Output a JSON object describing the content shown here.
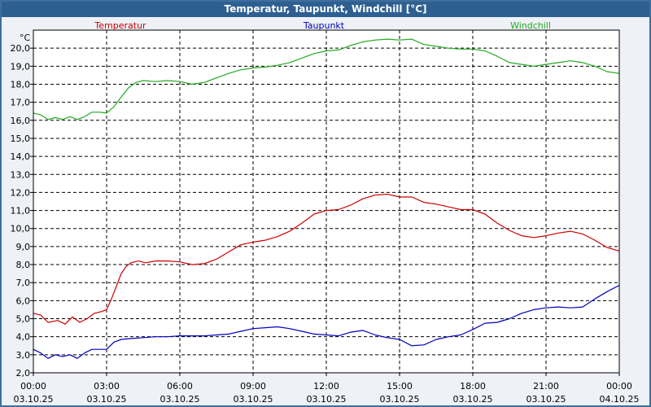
{
  "window": {
    "title": "Temperatur, Taupunkt, Windchill [°C]"
  },
  "colors": {
    "temperatur": "#cc0000",
    "taupunkt": "#0000bb",
    "windchill": "#22aa22",
    "titlebar": "#2e5f91",
    "frame": "#3f6e9e"
  },
  "chart_data": {
    "type": "line",
    "title": "Temperatur, Taupunkt, Windchill [°C]",
    "ylabel": "°C",
    "xlabel": "",
    "ylim": [
      2.0,
      21.0
    ],
    "xlim": [
      0,
      24
    ],
    "y_ticks": [
      "2,0",
      "3,0",
      "4,0",
      "5,0",
      "6,0",
      "7,0",
      "8,0",
      "9,0",
      "10,0",
      "11,0",
      "12,0",
      "13,0",
      "14,0",
      "15,0",
      "16,0",
      "17,0",
      "18,0",
      "19,0",
      "20,0"
    ],
    "x_ticks": [
      {
        "time": "00:00",
        "date": "03.10.25"
      },
      {
        "time": "03:00",
        "date": "03.10.25"
      },
      {
        "time": "06:00",
        "date": "03.10.25"
      },
      {
        "time": "09:00",
        "date": "03.10.25"
      },
      {
        "time": "12:00",
        "date": "03.10.25"
      },
      {
        "time": "15:00",
        "date": "03.10.25"
      },
      {
        "time": "18:00",
        "date": "03.10.25"
      },
      {
        "time": "21:00",
        "date": "03.10.25"
      },
      {
        "time": "00:00",
        "date": "04.10.25"
      }
    ],
    "grid": true,
    "legend_position": "top",
    "series": [
      {
        "name": "Temperatur",
        "points": [
          [
            0.0,
            5.3
          ],
          [
            0.3,
            5.2
          ],
          [
            0.6,
            4.8
          ],
          [
            1.0,
            4.9
          ],
          [
            1.3,
            4.7
          ],
          [
            1.6,
            5.1
          ],
          [
            1.9,
            4.8
          ],
          [
            2.2,
            5.0
          ],
          [
            2.5,
            5.3
          ],
          [
            2.8,
            5.4
          ],
          [
            3.0,
            5.5
          ],
          [
            3.2,
            6.1
          ],
          [
            3.4,
            6.8
          ],
          [
            3.6,
            7.5
          ],
          [
            3.8,
            7.9
          ],
          [
            4.0,
            8.1
          ],
          [
            4.3,
            8.2
          ],
          [
            4.6,
            8.1
          ],
          [
            5.0,
            8.2
          ],
          [
            5.5,
            8.2
          ],
          [
            6.0,
            8.15
          ],
          [
            6.5,
            8.0
          ],
          [
            7.0,
            8.05
          ],
          [
            7.5,
            8.3
          ],
          [
            8.0,
            8.7
          ],
          [
            8.5,
            9.1
          ],
          [
            9.0,
            9.25
          ],
          [
            9.5,
            9.35
          ],
          [
            10.0,
            9.55
          ],
          [
            10.5,
            9.85
          ],
          [
            11.0,
            10.3
          ],
          [
            11.5,
            10.8
          ],
          [
            12.0,
            11.0
          ],
          [
            12.5,
            11.05
          ],
          [
            13.0,
            11.3
          ],
          [
            13.5,
            11.65
          ],
          [
            14.0,
            11.85
          ],
          [
            14.5,
            11.9
          ],
          [
            15.0,
            11.75
          ],
          [
            15.5,
            11.75
          ],
          [
            16.0,
            11.45
          ],
          [
            16.5,
            11.35
          ],
          [
            17.0,
            11.2
          ],
          [
            17.5,
            11.05
          ],
          [
            18.0,
            11.05
          ],
          [
            18.5,
            10.8
          ],
          [
            19.0,
            10.3
          ],
          [
            19.5,
            9.9
          ],
          [
            20.0,
            9.6
          ],
          [
            20.5,
            9.5
          ],
          [
            21.0,
            9.6
          ],
          [
            21.5,
            9.75
          ],
          [
            22.0,
            9.85
          ],
          [
            22.5,
            9.7
          ],
          [
            23.0,
            9.35
          ],
          [
            23.5,
            8.95
          ],
          [
            24.0,
            8.75
          ]
        ]
      },
      {
        "name": "Taupunkt",
        "points": [
          [
            0.0,
            3.3
          ],
          [
            0.3,
            3.1
          ],
          [
            0.6,
            2.8
          ],
          [
            0.9,
            3.0
          ],
          [
            1.2,
            2.9
          ],
          [
            1.5,
            3.0
          ],
          [
            1.8,
            2.8
          ],
          [
            2.1,
            3.1
          ],
          [
            2.4,
            3.3
          ],
          [
            2.7,
            3.3
          ],
          [
            3.0,
            3.3
          ],
          [
            3.3,
            3.7
          ],
          [
            3.6,
            3.85
          ],
          [
            4.0,
            3.9
          ],
          [
            4.5,
            3.95
          ],
          [
            5.0,
            4.0
          ],
          [
            5.5,
            4.0
          ],
          [
            6.0,
            4.05
          ],
          [
            6.5,
            4.05
          ],
          [
            7.0,
            4.05
          ],
          [
            7.5,
            4.1
          ],
          [
            8.0,
            4.15
          ],
          [
            8.5,
            4.3
          ],
          [
            9.0,
            4.45
          ],
          [
            9.5,
            4.5
          ],
          [
            10.0,
            4.55
          ],
          [
            10.5,
            4.45
          ],
          [
            11.0,
            4.3
          ],
          [
            11.5,
            4.15
          ],
          [
            12.0,
            4.1
          ],
          [
            12.5,
            4.05
          ],
          [
            13.0,
            4.25
          ],
          [
            13.5,
            4.35
          ],
          [
            14.0,
            4.1
          ],
          [
            14.5,
            3.95
          ],
          [
            15.0,
            3.85
          ],
          [
            15.5,
            3.5
          ],
          [
            16.0,
            3.55
          ],
          [
            16.5,
            3.85
          ],
          [
            17.0,
            4.0
          ],
          [
            17.5,
            4.1
          ],
          [
            18.0,
            4.4
          ],
          [
            18.5,
            4.75
          ],
          [
            19.0,
            4.8
          ],
          [
            19.5,
            5.0
          ],
          [
            20.0,
            5.3
          ],
          [
            20.5,
            5.5
          ],
          [
            21.0,
            5.6
          ],
          [
            21.5,
            5.65
          ],
          [
            22.0,
            5.6
          ],
          [
            22.5,
            5.65
          ],
          [
            23.0,
            6.1
          ],
          [
            23.5,
            6.5
          ],
          [
            24.0,
            6.85
          ]
        ]
      },
      {
        "name": "Windchill",
        "points": [
          [
            0.0,
            16.4
          ],
          [
            0.3,
            16.3
          ],
          [
            0.6,
            16.05
          ],
          [
            0.9,
            16.15
          ],
          [
            1.2,
            16.05
          ],
          [
            1.5,
            16.2
          ],
          [
            1.8,
            16.05
          ],
          [
            2.1,
            16.2
          ],
          [
            2.4,
            16.45
          ],
          [
            2.7,
            16.45
          ],
          [
            3.0,
            16.4
          ],
          [
            3.3,
            16.75
          ],
          [
            3.6,
            17.3
          ],
          [
            3.9,
            17.8
          ],
          [
            4.2,
            18.1
          ],
          [
            4.5,
            18.2
          ],
          [
            5.0,
            18.15
          ],
          [
            5.5,
            18.2
          ],
          [
            6.0,
            18.15
          ],
          [
            6.5,
            18.0
          ],
          [
            7.0,
            18.1
          ],
          [
            7.5,
            18.35
          ],
          [
            8.0,
            18.6
          ],
          [
            8.5,
            18.8
          ],
          [
            9.0,
            18.9
          ],
          [
            9.5,
            18.95
          ],
          [
            10.0,
            19.05
          ],
          [
            10.5,
            19.2
          ],
          [
            11.0,
            19.45
          ],
          [
            11.5,
            19.7
          ],
          [
            12.0,
            19.85
          ],
          [
            12.5,
            19.9
          ],
          [
            13.0,
            20.15
          ],
          [
            13.5,
            20.35
          ],
          [
            14.0,
            20.45
          ],
          [
            14.5,
            20.5
          ],
          [
            15.0,
            20.45
          ],
          [
            15.5,
            20.5
          ],
          [
            16.0,
            20.2
          ],
          [
            16.5,
            20.1
          ],
          [
            17.0,
            20.0
          ],
          [
            17.5,
            19.95
          ],
          [
            18.0,
            19.95
          ],
          [
            18.5,
            19.85
          ],
          [
            19.0,
            19.55
          ],
          [
            19.5,
            19.2
          ],
          [
            20.0,
            19.1
          ],
          [
            20.5,
            19.0
          ],
          [
            21.0,
            19.1
          ],
          [
            21.5,
            19.2
          ],
          [
            22.0,
            19.3
          ],
          [
            22.5,
            19.2
          ],
          [
            23.0,
            19.0
          ],
          [
            23.5,
            18.7
          ],
          [
            24.0,
            18.6
          ]
        ]
      }
    ]
  }
}
